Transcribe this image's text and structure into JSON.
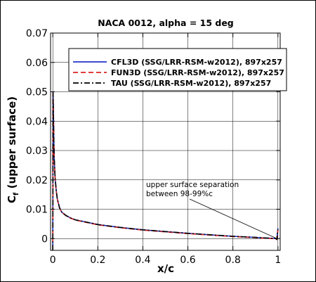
{
  "chart_data": {
    "type": "line",
    "title": "NACA 0012, alpha = 15 deg",
    "xlabel": "x/c",
    "ylabel_main": "C",
    "ylabel_sub": "f",
    "ylabel_rest": " (upper surface)",
    "xlim": [
      -0.01,
      1.01
    ],
    "ylim": [
      -0.004,
      0.07
    ],
    "x_ticks": [
      0,
      0.2,
      0.4,
      0.6,
      0.8,
      1
    ],
    "x_tick_labels": [
      "0",
      "0.2",
      "0.4",
      "0.6",
      "0.8",
      "1"
    ],
    "y_ticks": [
      0,
      0.01,
      0.02,
      0.03,
      0.04,
      0.05,
      0.06,
      0.07
    ],
    "y_tick_labels": [
      "0",
      "0.01",
      "0.02",
      "0.03",
      "0.04",
      "0.05",
      "0.06",
      "0.07"
    ],
    "grid": true,
    "legend_position": "top-right",
    "series": [
      {
        "name": "CFL3D (SSG/LRR-RSM-w2012), 897x257",
        "color": "#2233cc",
        "dash": "solid",
        "x": [
          0,
          0.0008,
          0.002,
          0.004,
          0.006,
          0.01,
          0.015,
          0.02,
          0.03,
          0.04,
          0.06,
          0.08,
          0.1,
          0.15,
          0.2,
          0.3,
          0.4,
          0.5,
          0.6,
          0.7,
          0.8,
          0.9,
          0.95,
          0.98,
          0.99,
          0.995,
          1
        ],
        "y": [
          -0.004,
          0.05,
          0.047,
          0.036,
          0.028,
          0.021,
          0.0165,
          0.0135,
          0.0105,
          0.009,
          0.0078,
          0.007,
          0.0064,
          0.0056,
          0.0048,
          0.0038,
          0.003,
          0.0024,
          0.0018,
          0.0013,
          0.0008,
          0.0004,
          0.0002,
          0.0001,
          0,
          -0.0002,
          0.0035
        ]
      },
      {
        "name": "FUN3D (SSG/LRR-RSM-w2012), 897x257",
        "color": "#dd2222",
        "dash": "dashed",
        "x": [
          0,
          0.0008,
          0.002,
          0.004,
          0.006,
          0.01,
          0.015,
          0.02,
          0.03,
          0.04,
          0.06,
          0.08,
          0.1,
          0.15,
          0.2,
          0.3,
          0.4,
          0.5,
          0.6,
          0.7,
          0.8,
          0.9,
          0.95,
          0.98,
          0.99,
          0.995,
          1
        ],
        "y": [
          -0.004,
          0.0495,
          0.0465,
          0.0355,
          0.0278,
          0.0209,
          0.0164,
          0.0134,
          0.0104,
          0.0089,
          0.0077,
          0.0069,
          0.0063,
          0.0055,
          0.0047,
          0.0037,
          0.0029,
          0.0023,
          0.0017,
          0.0012,
          0.0007,
          0.0003,
          0.0001,
          0,
          -0.0001,
          -0.0003,
          0.003
        ]
      },
      {
        "name": "TAU (SSG/LRR-RSM-w2012), 897x257",
        "color": "#000000",
        "dash": "dashdot",
        "x": [
          0,
          0.0008,
          0.002,
          0.004,
          0.006,
          0.01,
          0.015,
          0.02,
          0.03,
          0.04,
          0.06,
          0.08,
          0.1,
          0.15,
          0.2,
          0.3,
          0.4,
          0.5,
          0.6,
          0.7,
          0.8,
          0.9,
          0.95,
          0.98,
          0.99,
          0.995,
          1
        ],
        "y": [
          -0.004,
          0.0498,
          0.0468,
          0.0358,
          0.0279,
          0.021,
          0.0165,
          0.0135,
          0.0105,
          0.009,
          0.0078,
          0.007,
          0.0064,
          0.0056,
          0.0048,
          0.0038,
          0.003,
          0.0024,
          0.0018,
          0.0013,
          0.0008,
          0.0004,
          0.0002,
          0.0001,
          0,
          -0.0002,
          0.0032
        ]
      }
    ],
    "annotation": {
      "lines": [
        "upper surface separation",
        "between 98-99%c"
      ],
      "arrow_target": [
        0.99,
        0.0002
      ]
    }
  }
}
